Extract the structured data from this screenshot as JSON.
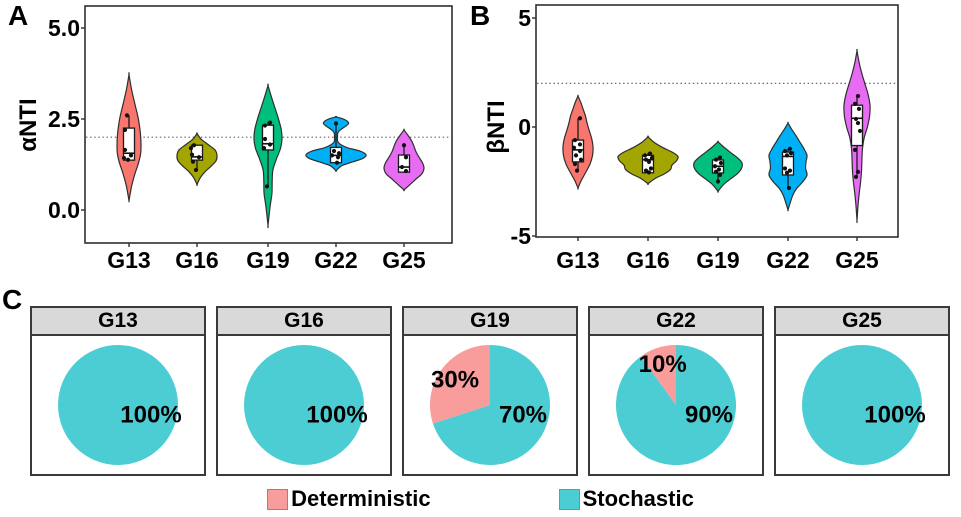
{
  "figure": {
    "panels": {
      "a": {
        "letter": "A",
        "ylabel": "αNTI"
      },
      "b": {
        "letter": "B",
        "ylabel": "βNTI"
      },
      "c": {
        "letter": "C"
      }
    },
    "legend": {
      "items": [
        {
          "label": "Deterministic",
          "color": "#F89C9C"
        },
        {
          "label": "Stochastic",
          "color": "#4CCDD4"
        }
      ]
    }
  },
  "chart_data": [
    {
      "type": "violin",
      "panel": "A",
      "ylabel": "αNTI",
      "ylim": [
        -0.9,
        5.6
      ],
      "yticks": [
        0.0,
        2.5,
        5.0
      ],
      "ytick_labels": [
        "0.0",
        "2.5",
        "5.0"
      ],
      "ref_line": 2.0,
      "grid": false,
      "categories": [
        "G13",
        "G16",
        "G19",
        "G22",
        "G25"
      ],
      "series": [
        {
          "name": "G13",
          "color": "#F8766D",
          "max_halfwidth": 12,
          "profile": [
            [
              3.72,
              0
            ],
            [
              3.3,
              0.22
            ],
            [
              2.9,
              0.5
            ],
            [
              2.5,
              0.78
            ],
            [
              2.1,
              0.95
            ],
            [
              1.8,
              1
            ],
            [
              1.55,
              0.97
            ],
            [
              1.3,
              0.8
            ],
            [
              1.0,
              0.5
            ],
            [
              0.7,
              0.25
            ],
            [
              0.45,
              0.1
            ],
            [
              0.25,
              0
            ]
          ],
          "box": {
            "q1": 1.37,
            "median": 1.56,
            "q3": 2.25,
            "whisker_low": 1.35,
            "whisker_high": 2.6
          },
          "points": [
            [
              2.6,
              -2
            ],
            [
              2.2,
              -4
            ],
            [
              1.65,
              -4
            ],
            [
              1.5,
              2
            ],
            [
              1.43,
              -5
            ],
            [
              1.38,
              -1
            ]
          ]
        },
        {
          "name": "G16",
          "color": "#A3A500",
          "max_halfwidth": 20,
          "profile": [
            [
              2.1,
              0
            ],
            [
              1.95,
              0.2
            ],
            [
              1.8,
              0.55
            ],
            [
              1.65,
              0.9
            ],
            [
              1.5,
              1
            ],
            [
              1.35,
              0.95
            ],
            [
              1.2,
              0.7
            ],
            [
              1.05,
              0.4
            ],
            [
              0.9,
              0.18
            ],
            [
              0.7,
              0
            ]
          ],
          "box": {
            "q1": 1.37,
            "median": 1.46,
            "q3": 1.78,
            "whisker_low": 1.1,
            "whisker_high": 1.8
          },
          "points": [
            [
              1.78,
              -3
            ],
            [
              1.7,
              -6
            ],
            [
              1.52,
              -5
            ],
            [
              1.45,
              2
            ],
            [
              1.33,
              -4
            ],
            [
              1.1,
              -1
            ]
          ]
        },
        {
          "name": "G19",
          "color": "#00BF7D",
          "max_halfwidth": 14,
          "profile": [
            [
              3.42,
              0
            ],
            [
              3.1,
              0.25
            ],
            [
              2.8,
              0.5
            ],
            [
              2.5,
              0.75
            ],
            [
              2.2,
              0.95
            ],
            [
              1.95,
              1
            ],
            [
              1.7,
              0.9
            ],
            [
              1.4,
              0.6
            ],
            [
              1.1,
              0.35
            ],
            [
              0.8,
              0.3
            ],
            [
              0.45,
              0.28
            ],
            [
              0.1,
              0.15
            ],
            [
              -0.42,
              0
            ]
          ],
          "box": {
            "q1": 1.65,
            "median": 1.82,
            "q3": 2.33,
            "whisker_low": 0.65,
            "whisker_high": 2.42
          },
          "points": [
            [
              2.4,
              2
            ],
            [
              2.32,
              -3
            ],
            [
              1.95,
              -3
            ],
            [
              1.8,
              2
            ],
            [
              1.7,
              -4
            ],
            [
              0.65,
              -1
            ]
          ]
        },
        {
          "name": "G22",
          "color": "#00B0F6",
          "max_halfwidth": 30,
          "profile": [
            [
              2.56,
              0
            ],
            [
              2.48,
              0.3
            ],
            [
              2.38,
              0.42
            ],
            [
              2.28,
              0.28
            ],
            [
              2.15,
              0.08
            ],
            [
              2.0,
              0.05
            ],
            [
              1.85,
              0.08
            ],
            [
              1.72,
              0.35
            ],
            [
              1.62,
              0.8
            ],
            [
              1.52,
              1
            ],
            [
              1.42,
              0.9
            ],
            [
              1.32,
              0.55
            ],
            [
              1.22,
              0.2
            ],
            [
              1.08,
              0
            ]
          ],
          "box": {
            "q1": 1.3,
            "median": 1.5,
            "q3": 1.72,
            "whisker_low": 1.28,
            "whisker_high": 2.38
          },
          "points": [
            [
              2.38,
              0
            ],
            [
              1.62,
              -2
            ],
            [
              1.56,
              3
            ],
            [
              1.5,
              -4
            ],
            [
              1.45,
              2
            ],
            [
              1.3,
              1
            ]
          ]
        },
        {
          "name": "G25",
          "color": "#E76BF3",
          "max_halfwidth": 20,
          "profile": [
            [
              2.2,
              0
            ],
            [
              2.05,
              0.2
            ],
            [
              1.9,
              0.38
            ],
            [
              1.75,
              0.5
            ],
            [
              1.6,
              0.6
            ],
            [
              1.45,
              0.75
            ],
            [
              1.3,
              0.92
            ],
            [
              1.15,
              1
            ],
            [
              1.0,
              0.9
            ],
            [
              0.85,
              0.6
            ],
            [
              0.7,
              0.3
            ],
            [
              0.55,
              0
            ]
          ],
          "box": {
            "q1": 1.04,
            "median": 1.18,
            "q3": 1.51,
            "whisker_low": 1.02,
            "whisker_high": 1.78
          },
          "points": [
            [
              1.78,
              0
            ],
            [
              1.45,
              2
            ],
            [
              1.18,
              -2
            ],
            [
              1.07,
              2
            ]
          ]
        }
      ]
    },
    {
      "type": "violin",
      "panel": "B",
      "ylabel": "βNTI",
      "ylim": [
        -5.1,
        5.6
      ],
      "yticks": [
        -5,
        0,
        5
      ],
      "ytick_labels": [
        "-5",
        "0",
        "5"
      ],
      "ref_line": 2.0,
      "grid": false,
      "categories": [
        "G13",
        "G16",
        "G19",
        "G22",
        "G25"
      ],
      "series": [
        {
          "name": "G13",
          "color": "#F8766D",
          "max_halfwidth": 15,
          "profile": [
            [
              1.42,
              0
            ],
            [
              1.1,
              0.2
            ],
            [
              0.8,
              0.35
            ],
            [
              0.5,
              0.5
            ],
            [
              0.2,
              0.6
            ],
            [
              -0.1,
              0.72
            ],
            [
              -0.5,
              0.9
            ],
            [
              -0.9,
              1
            ],
            [
              -1.3,
              0.97
            ],
            [
              -1.7,
              0.8
            ],
            [
              -2.1,
              0.5
            ],
            [
              -2.45,
              0.22
            ],
            [
              -2.8,
              0
            ]
          ],
          "box": {
            "q1": -1.6,
            "median": -1.05,
            "q3": -0.6,
            "whisker_low": -2.0,
            "whisker_high": 0.4
          },
          "points": [
            [
              0.4,
              2
            ],
            [
              -0.6,
              -3
            ],
            [
              -0.8,
              2
            ],
            [
              -0.95,
              -4
            ],
            [
              -1.1,
              2
            ],
            [
              -1.3,
              -2
            ],
            [
              -1.5,
              3
            ],
            [
              -1.7,
              -3
            ],
            [
              -2.0,
              -1
            ]
          ]
        },
        {
          "name": "G16",
          "color": "#A3A500",
          "max_halfwidth": 30,
          "profile": [
            [
              -0.45,
              0
            ],
            [
              -0.7,
              0.2
            ],
            [
              -0.95,
              0.5
            ],
            [
              -1.15,
              0.8
            ],
            [
              -1.35,
              1
            ],
            [
              -1.55,
              0.95
            ],
            [
              -1.75,
              0.8
            ],
            [
              -1.95,
              0.75
            ],
            [
              -2.15,
              0.55
            ],
            [
              -2.35,
              0.25
            ],
            [
              -2.6,
              0
            ]
          ],
          "box": {
            "q1": -2.1,
            "median": -1.5,
            "q3": -1.3,
            "whisker_low": -2.15,
            "whisker_high": -1.2
          },
          "points": [
            [
              -1.22,
              2
            ],
            [
              -1.3,
              -3
            ],
            [
              -1.42,
              4
            ],
            [
              -1.5,
              -2
            ],
            [
              -1.6,
              1
            ],
            [
              -1.9,
              3
            ],
            [
              -2.0,
              -2
            ],
            [
              -2.08,
              1
            ]
          ]
        },
        {
          "name": "G19",
          "color": "#00BF7D",
          "max_halfwidth": 24,
          "profile": [
            [
              -0.68,
              0
            ],
            [
              -0.9,
              0.22
            ],
            [
              -1.15,
              0.5
            ],
            [
              -1.4,
              0.8
            ],
            [
              -1.65,
              1
            ],
            [
              -1.9,
              0.98
            ],
            [
              -2.15,
              0.8
            ],
            [
              -2.4,
              0.5
            ],
            [
              -2.65,
              0.22
            ],
            [
              -2.95,
              0
            ]
          ],
          "box": {
            "q1": -2.11,
            "median": -1.8,
            "q3": -1.51,
            "whisker_low": -2.5,
            "whisker_high": -1.4
          },
          "points": [
            [
              -1.4,
              2
            ],
            [
              -1.5,
              -2
            ],
            [
              -1.65,
              3
            ],
            [
              -1.8,
              -3
            ],
            [
              -1.95,
              1
            ],
            [
              -2.05,
              -2
            ],
            [
              -2.2,
              2
            ],
            [
              -2.5,
              0
            ]
          ]
        },
        {
          "name": "G22",
          "color": "#00B0F6",
          "max_halfwidth": 20,
          "profile": [
            [
              0.18,
              0
            ],
            [
              -0.1,
              0.18
            ],
            [
              -0.4,
              0.4
            ],
            [
              -0.7,
              0.6
            ],
            [
              -1.0,
              0.8
            ],
            [
              -1.3,
              0.95
            ],
            [
              -1.6,
              0.9
            ],
            [
              -1.9,
              0.88
            ],
            [
              -2.2,
              0.95
            ],
            [
              -2.5,
              0.75
            ],
            [
              -2.8,
              0.45
            ],
            [
              -3.1,
              0.25
            ],
            [
              -3.45,
              0.12
            ],
            [
              -3.8,
              0
            ]
          ],
          "box": {
            "q1": -2.2,
            "median": -1.35,
            "q3": -1.15,
            "whisker_low": -2.8,
            "whisker_high": -1.0
          },
          "points": [
            [
              -1.0,
              2
            ],
            [
              -1.1,
              -3
            ],
            [
              -1.2,
              3
            ],
            [
              -1.3,
              -1
            ],
            [
              -1.9,
              -3
            ],
            [
              -2.0,
              2
            ],
            [
              -2.1,
              -1
            ],
            [
              -2.8,
              1
            ]
          ]
        },
        {
          "name": "G25",
          "color": "#E76BF3",
          "max_halfwidth": 13,
          "profile": [
            [
              3.5,
              0
            ],
            [
              3.0,
              0.15
            ],
            [
              2.5,
              0.35
            ],
            [
              2.0,
              0.6
            ],
            [
              1.5,
              0.85
            ],
            [
              1.0,
              1
            ],
            [
              0.5,
              0.97
            ],
            [
              0.0,
              0.8
            ],
            [
              -0.5,
              0.55
            ],
            [
              -1.0,
              0.42
            ],
            [
              -1.5,
              0.38
            ],
            [
              -2.0,
              0.35
            ],
            [
              -2.5,
              0.28
            ],
            [
              -3.0,
              0.18
            ],
            [
              -3.6,
              0.08
            ],
            [
              -4.3,
              0
            ]
          ],
          "box": {
            "q1": -0.85,
            "median": 0.4,
            "q3": 1.0,
            "whisker_low": -2.3,
            "whisker_high": 1.45
          },
          "points": [
            [
              1.42,
              1
            ],
            [
              1.06,
              -2
            ],
            [
              0.83,
              2
            ],
            [
              0.37,
              -1
            ],
            [
              0.18,
              1
            ],
            [
              -0.18,
              3
            ],
            [
              -1.05,
              -2
            ],
            [
              -2.06,
              1
            ],
            [
              -2.29,
              -1
            ]
          ]
        }
      ]
    },
    {
      "type": "pie",
      "panel": "C",
      "colors": {
        "Deterministic": "#F89C9C",
        "Stochastic": "#4CCDD4"
      },
      "facets": [
        {
          "label": "G13",
          "slices": [
            {
              "name": "Stochastic",
              "pct": 100
            }
          ]
        },
        {
          "label": "G16",
          "slices": [
            {
              "name": "Stochastic",
              "pct": 100
            }
          ]
        },
        {
          "label": "G19",
          "slices": [
            {
              "name": "Stochastic",
              "pct": 70
            },
            {
              "name": "Deterministic",
              "pct": 30
            }
          ]
        },
        {
          "label": "G22",
          "slices": [
            {
              "name": "Stochastic",
              "pct": 90
            },
            {
              "name": "Deterministic",
              "pct": 10
            }
          ]
        },
        {
          "label": "G25",
          "slices": [
            {
              "name": "Stochastic",
              "pct": 100
            }
          ]
        }
      ]
    }
  ]
}
